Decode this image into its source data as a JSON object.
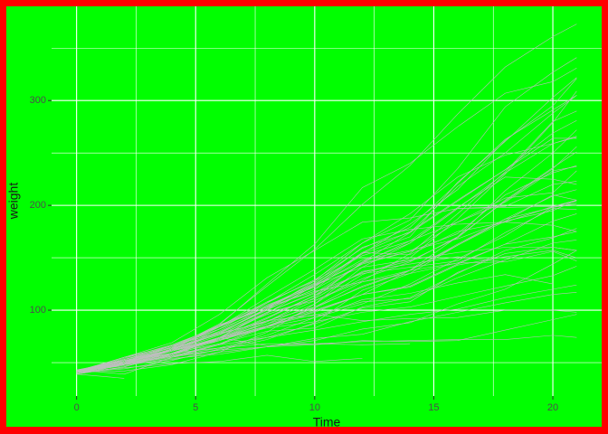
{
  "chart_data": {
    "type": "line",
    "xlabel": "Time",
    "ylabel": "weight",
    "x": [
      0,
      2,
      4,
      6,
      8,
      10,
      12,
      14,
      16,
      18,
      20,
      21
    ],
    "color": "#bebebe",
    "series": [
      {
        "values": [
          42,
          51,
          59,
          64,
          76,
          93,
          106,
          125,
          149,
          171,
          199,
          205
        ]
      },
      {
        "values": [
          40,
          49,
          58,
          72,
          84,
          103,
          122,
          138,
          162,
          187,
          209,
          215
        ]
      },
      {
        "values": [
          43,
          39,
          55,
          67,
          84,
          99,
          115,
          138,
          163,
          187,
          198,
          202
        ]
      },
      {
        "values": [
          42,
          49,
          56,
          67,
          74,
          87,
          102,
          108,
          136,
          154,
          160,
          157
        ]
      },
      {
        "values": [
          41,
          42,
          48,
          60,
          79,
          106,
          141,
          164,
          197,
          199,
          220,
          223
        ]
      },
      {
        "values": [
          41,
          49,
          59,
          74,
          97,
          124,
          141,
          148,
          155,
          160,
          160,
          157
        ]
      },
      {
        "values": [
          41,
          49,
          57,
          71,
          89,
          112,
          146,
          174,
          218,
          250,
          288,
          305
        ]
      },
      {
        "values": [
          42,
          50,
          61,
          71,
          84,
          93,
          110,
          116,
          126,
          134,
          125,
          null
        ]
      },
      {
        "values": [
          42,
          51,
          59,
          68,
          85,
          96,
          90,
          92,
          93,
          100,
          100,
          98
        ]
      },
      {
        "values": [
          41,
          44,
          52,
          63,
          74,
          81,
          89,
          96,
          101,
          112,
          120,
          124
        ]
      },
      {
        "values": [
          43,
          51,
          63,
          84,
          112,
          139,
          168,
          177,
          182,
          184,
          181,
          175
        ]
      },
      {
        "values": [
          41,
          49,
          56,
          62,
          72,
          88,
          119,
          135,
          162,
          185,
          195,
          205
        ]
      },
      {
        "values": [
          41,
          48,
          53,
          60,
          65,
          67,
          71,
          70,
          71,
          81,
          91,
          96
        ]
      },
      {
        "values": [
          41,
          49,
          62,
          79,
          101,
          128,
          164,
          192,
          227,
          248,
          259,
          266
        ]
      },
      {
        "values": [
          41,
          49,
          56,
          64,
          68,
          68,
          67,
          68,
          null,
          null,
          null,
          null
        ]
      },
      {
        "values": [
          41,
          45,
          49,
          51,
          57,
          51,
          54,
          null,
          null,
          null,
          null,
          null
        ]
      },
      {
        "values": [
          42,
          51,
          61,
          72,
          83,
          89,
          98,
          103,
          113,
          123,
          133,
          142
        ]
      },
      {
        "values": [
          39,
          35,
          null,
          null,
          null,
          null,
          null,
          null,
          null,
          null,
          null,
          null
        ]
      },
      {
        "values": [
          43,
          48,
          55,
          62,
          65,
          71,
          82,
          88,
          106,
          120,
          144,
          157
        ]
      },
      {
        "values": [
          41,
          47,
          54,
          58,
          65,
          73,
          77,
          89,
          98,
          107,
          115,
          117
        ]
      },
      {
        "values": [
          40,
          50,
          62,
          86,
          125,
          163,
          217,
          240,
          275,
          307,
          318,
          331
        ]
      },
      {
        "values": [
          41,
          55,
          64,
          77,
          90,
          95,
          108,
          111,
          131,
          148,
          164,
          167
        ]
      },
      {
        "values": [
          43,
          52,
          61,
          73,
          90,
          103,
          127,
          135,
          145,
          163,
          170,
          175
        ]
      },
      {
        "values": [
          42,
          52,
          58,
          74,
          66,
          68,
          70,
          71,
          72,
          72,
          76,
          74
        ]
      },
      {
        "values": [
          40,
          49,
          62,
          78,
          102,
          124,
          146,
          164,
          197,
          231,
          259,
          265
        ]
      },
      {
        "values": [
          42,
          48,
          57,
          74,
          93,
          114,
          136,
          147,
          169,
          205,
          236,
          251
        ]
      },
      {
        "values": [
          39,
          46,
          58,
          73,
          87,
          100,
          115,
          123,
          144,
          163,
          185,
          192
        ]
      },
      {
        "values": [
          39,
          46,
          58,
          73,
          92,
          114,
          145,
          156,
          184,
          207,
          212,
          233
        ]
      },
      {
        "values": [
          39,
          48,
          59,
          74,
          87,
          106,
          134,
          150,
          187,
          230,
          279,
          309
        ]
      },
      {
        "values": [
          42,
          48,
          59,
          72,
          85,
          98,
          115,
          122,
          143,
          151,
          157,
          150
        ]
      },
      {
        "values": [
          42,
          53,
          62,
          73,
          85,
          102,
          123,
          138,
          170,
          204,
          235,
          256
        ]
      },
      {
        "values": [
          41,
          49,
          65,
          82,
          107,
          129,
          159,
          179,
          221,
          263,
          291,
          305
        ]
      },
      {
        "values": [
          39,
          50,
          63,
          77,
          96,
          111,
          137,
          144,
          151,
          146,
          156,
          147
        ]
      },
      {
        "values": [
          41,
          49,
          63,
          85,
          107,
          134,
          164,
          186,
          235,
          294,
          327,
          341
        ]
      },
      {
        "values": [
          41,
          53,
          64,
          87,
          123,
          158,
          201,
          238,
          287,
          332,
          361,
          373
        ]
      },
      {
        "values": [
          39,
          48,
          61,
          76,
          98,
          116,
          145,
          166,
          198,
          227,
          225,
          220
        ]
      },
      {
        "values": [
          41,
          48,
          56,
          68,
          80,
          83,
          103,
          112,
          135,
          157,
          169,
          178
        ]
      },
      {
        "values": [
          41,
          49,
          61,
          74,
          98,
          109,
          128,
          154,
          192,
          232,
          280,
          290
        ]
      },
      {
        "values": [
          42,
          50,
          61,
          78,
          89,
          109,
          130,
          146,
          170,
          214,
          250,
          272
        ]
      },
      {
        "values": [
          41,
          55,
          66,
          79,
          101,
          120,
          154,
          182,
          215,
          262,
          295,
          321
        ]
      },
      {
        "values": [
          42,
          51,
          66,
          85,
          103,
          124,
          155,
          153,
          175,
          184,
          199,
          204
        ]
      },
      {
        "values": [
          42,
          49,
          63,
          84,
          103,
          126,
          160,
          174,
          204,
          234,
          269,
          281
        ]
      },
      {
        "values": [
          42,
          55,
          69,
          96,
          131,
          157,
          184,
          188,
          197,
          198,
          199,
          200
        ]
      },
      {
        "values": [
          42,
          51,
          65,
          86,
          103,
          118,
          127,
          138,
          145,
          146,
          null,
          null
        ]
      },
      {
        "values": [
          41,
          50,
          61,
          78,
          98,
          117,
          135,
          141,
          147,
          174,
          197,
          196
        ]
      },
      {
        "values": [
          40,
          52,
          62,
          82,
          101,
          120,
          144,
          156,
          173,
          210,
          231,
          238
        ]
      },
      {
        "values": [
          41,
          53,
          66,
          79,
          100,
          123,
          148,
          157,
          168,
          185,
          210,
          205
        ]
      },
      {
        "values": [
          39,
          50,
          62,
          80,
          104,
          125,
          154,
          170,
          222,
          261,
          303,
          322
        ]
      },
      {
        "values": [
          40,
          53,
          64,
          85,
          108,
          128,
          152,
          166,
          184,
          203,
          233,
          237
        ]
      },
      {
        "values": [
          41,
          54,
          67,
          84,
          105,
          122,
          155,
          175,
          205,
          234,
          264,
          264
        ]
      }
    ],
    "xlim": [
      -1.05,
      22.05
    ],
    "xticks": [
      0,
      5,
      10,
      15,
      20
    ],
    "xminorticks": [
      2.5,
      7.5,
      12.5,
      17.5
    ],
    "ylim": [
      18.1,
      389.9
    ],
    "yticks": [
      100,
      200,
      300
    ],
    "yminorticks": [
      50,
      150,
      250,
      350
    ],
    "grid": true
  }
}
